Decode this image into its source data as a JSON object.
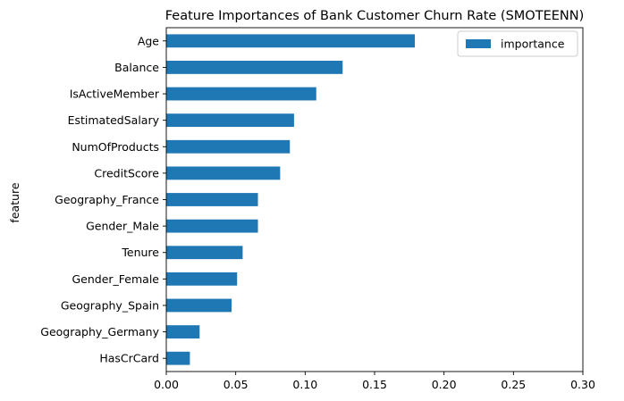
{
  "chart_data": {
    "type": "bar",
    "orientation": "horizontal",
    "title": "Feature Importances of Bank Customer Churn Rate (SMOTEENN)",
    "ylabel": "feature",
    "xlabel": "",
    "categories": [
      "Age",
      "Balance",
      "IsActiveMember",
      "EstimatedSalary",
      "NumOfProducts",
      "CreditScore",
      "Geography_France",
      "Gender_Male",
      "Tenure",
      "Gender_Female",
      "Geography_Spain",
      "Geography_Germany",
      "HasCrCard"
    ],
    "series": [
      {
        "name": "importance",
        "values": [
          0.179,
          0.127,
          0.108,
          0.092,
          0.089,
          0.082,
          0.066,
          0.066,
          0.055,
          0.051,
          0.047,
          0.024,
          0.017
        ]
      }
    ],
    "xlim": [
      0,
      0.3
    ],
    "xticks": [
      "0.00",
      "0.05",
      "0.10",
      "0.15",
      "0.20",
      "0.25",
      "0.30"
    ],
    "grid": false,
    "legend_position": "top-right",
    "bar_color": "#1f77b4"
  }
}
